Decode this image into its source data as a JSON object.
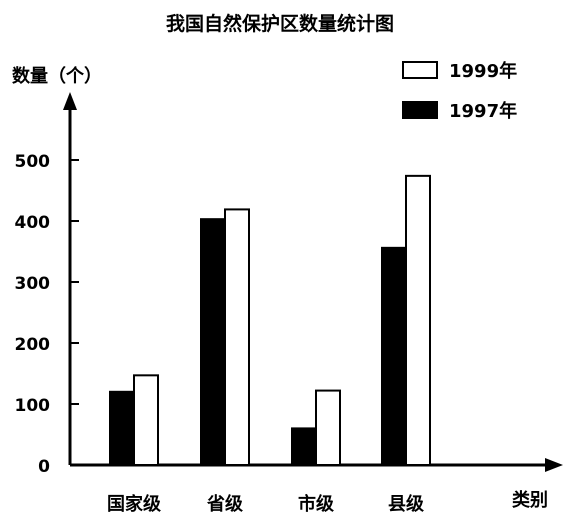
{
  "chart_data": {
    "type": "bar",
    "title": "我国自然保护区数量统计图",
    "ylabel": "数量（个）",
    "xlabel": "类别",
    "categories": [
      "国家级",
      "省级",
      "市级",
      "县级"
    ],
    "series": [
      {
        "name": "1997年",
        "values": [
          120,
          403,
          60,
          356
        ],
        "color": "#000000"
      },
      {
        "name": "1999年",
        "values": [
          147,
          419,
          122,
          474
        ],
        "color": "#ffffff"
      }
    ],
    "yticks": [
      0,
      100,
      200,
      300,
      400,
      500
    ],
    "ylim": [
      0,
      560
    ],
    "legend_position": "top-right",
    "grid": false
  }
}
